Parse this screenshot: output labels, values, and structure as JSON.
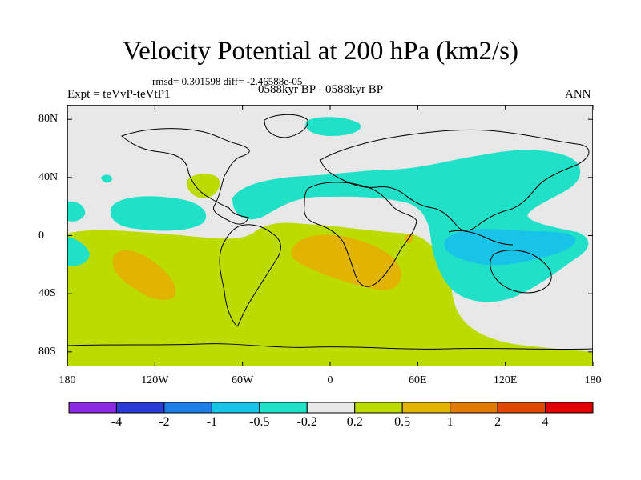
{
  "title": "Velocity Potential at 200 hPa (km2/s)",
  "stats_line": "rmsd= 0.301598 diff= -2.46588e-05",
  "experiment": "Expt = teVvP-teVtP1",
  "period": "0588kyr BP - 0588kyr BP",
  "season": "ANN",
  "x_ticks": [
    "180",
    "120W",
    "60W",
    "0",
    "60E",
    "120E",
    "180"
  ],
  "y_ticks": [
    "80N",
    "40N",
    "0",
    "40S",
    "80S"
  ],
  "colorbar": {
    "colors": [
      "#8a2be2",
      "#2b3bd6",
      "#1e7ee8",
      "#18c3e8",
      "#20e0c8",
      "#e8e8e8",
      "#bcdc00",
      "#e0b400",
      "#e07a00",
      "#e04a00",
      "#e00000"
    ],
    "labels": [
      "-4",
      "-2",
      "-1",
      "-0.5",
      "-0.2",
      "0.2",
      "0.5",
      "1",
      "2",
      "4"
    ]
  },
  "background_color": "#e8e8e8"
}
